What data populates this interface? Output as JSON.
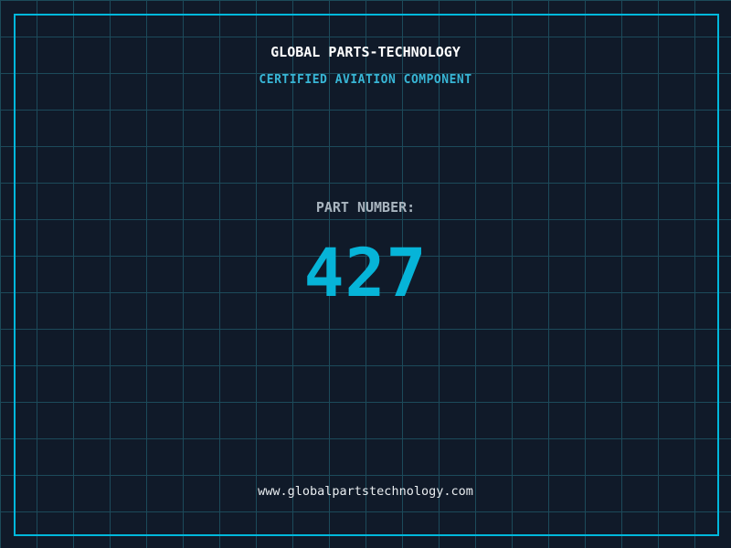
{
  "colors": {
    "background": "#101a29",
    "grid_line": "#1c4a5a",
    "frame_border": "#00b8dc",
    "title": "#ffffff",
    "subtitle": "#38b6d6",
    "part_label": "#a9b5bf",
    "part_number": "#06b4d8",
    "url": "#e9edf0"
  },
  "header": {
    "title": "GLOBAL PARTS-TECHNOLOGY",
    "subtitle": "CERTIFIED AVIATION COMPONENT"
  },
  "part": {
    "label": "PART NUMBER:",
    "number": "427"
  },
  "footer": {
    "url": "www.globalpartstechnology.com"
  }
}
